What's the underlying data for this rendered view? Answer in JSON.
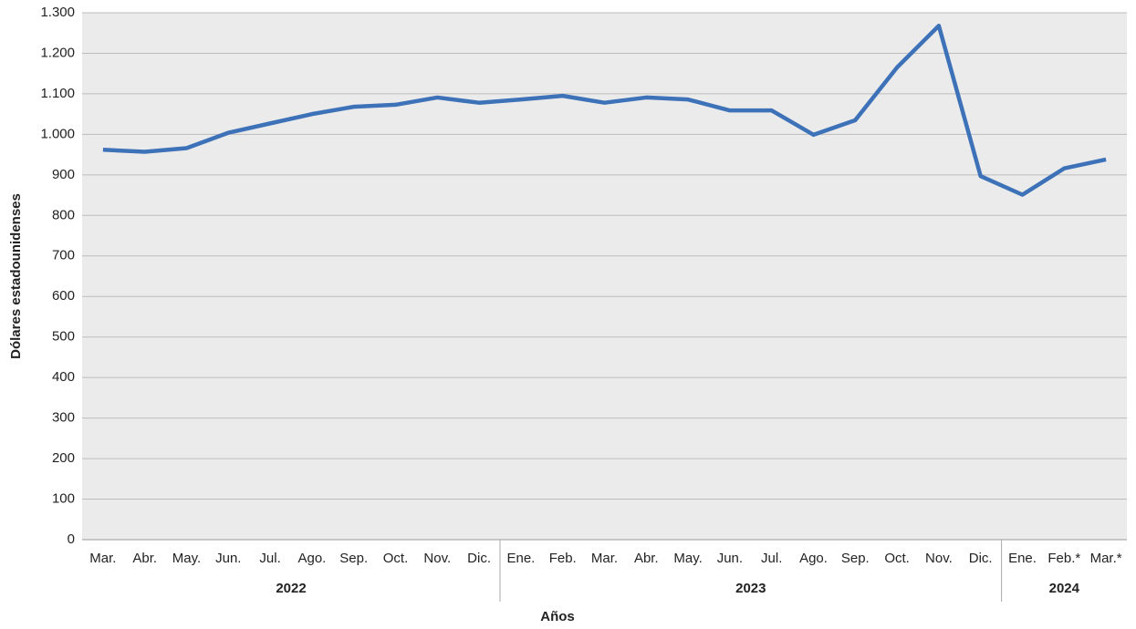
{
  "chart_data": {
    "type": "line",
    "x_label": "Años",
    "y_label": "Dólares estadounidenses",
    "groups": [
      {
        "label": "2022",
        "categories": [
          "Mar.",
          "Abr.",
          "May.",
          "Jun.",
          "Jul.",
          "Ago.",
          "Sep.",
          "Oct.",
          "Nov.",
          "Dic."
        ]
      },
      {
        "label": "2023",
        "categories": [
          "Ene.",
          "Feb.",
          "Mar.",
          "Abr.",
          "May.",
          "Jun.",
          "Jul.",
          "Ago.",
          "Sep.",
          "Oct.",
          "Nov.",
          "Dic."
        ]
      },
      {
        "label": "2024",
        "categories": [
          "Ene.",
          "Feb.*",
          "Mar.*"
        ]
      }
    ],
    "series": [
      {
        "color": "#3d72b8",
        "values": [
          962,
          957,
          966,
          1004,
          1027,
          1050,
          1068,
          1073,
          1091,
          1078,
          1086,
          1095,
          1078,
          1091,
          1086,
          1059,
          1059,
          999,
          1035,
          1165,
          1268,
          897,
          851,
          916,
          938
        ]
      }
    ],
    "ylim": [
      0,
      1300
    ],
    "yticks": [
      0,
      100,
      200,
      300,
      400,
      500,
      600,
      700,
      800,
      900,
      {
        "value": 1000,
        "label": "1.000"
      },
      {
        "value": 1100,
        "label": "1.100"
      },
      {
        "value": 1200,
        "label": "1.200"
      },
      {
        "value": 1300,
        "label": "1.300"
      }
    ],
    "grid": true
  }
}
